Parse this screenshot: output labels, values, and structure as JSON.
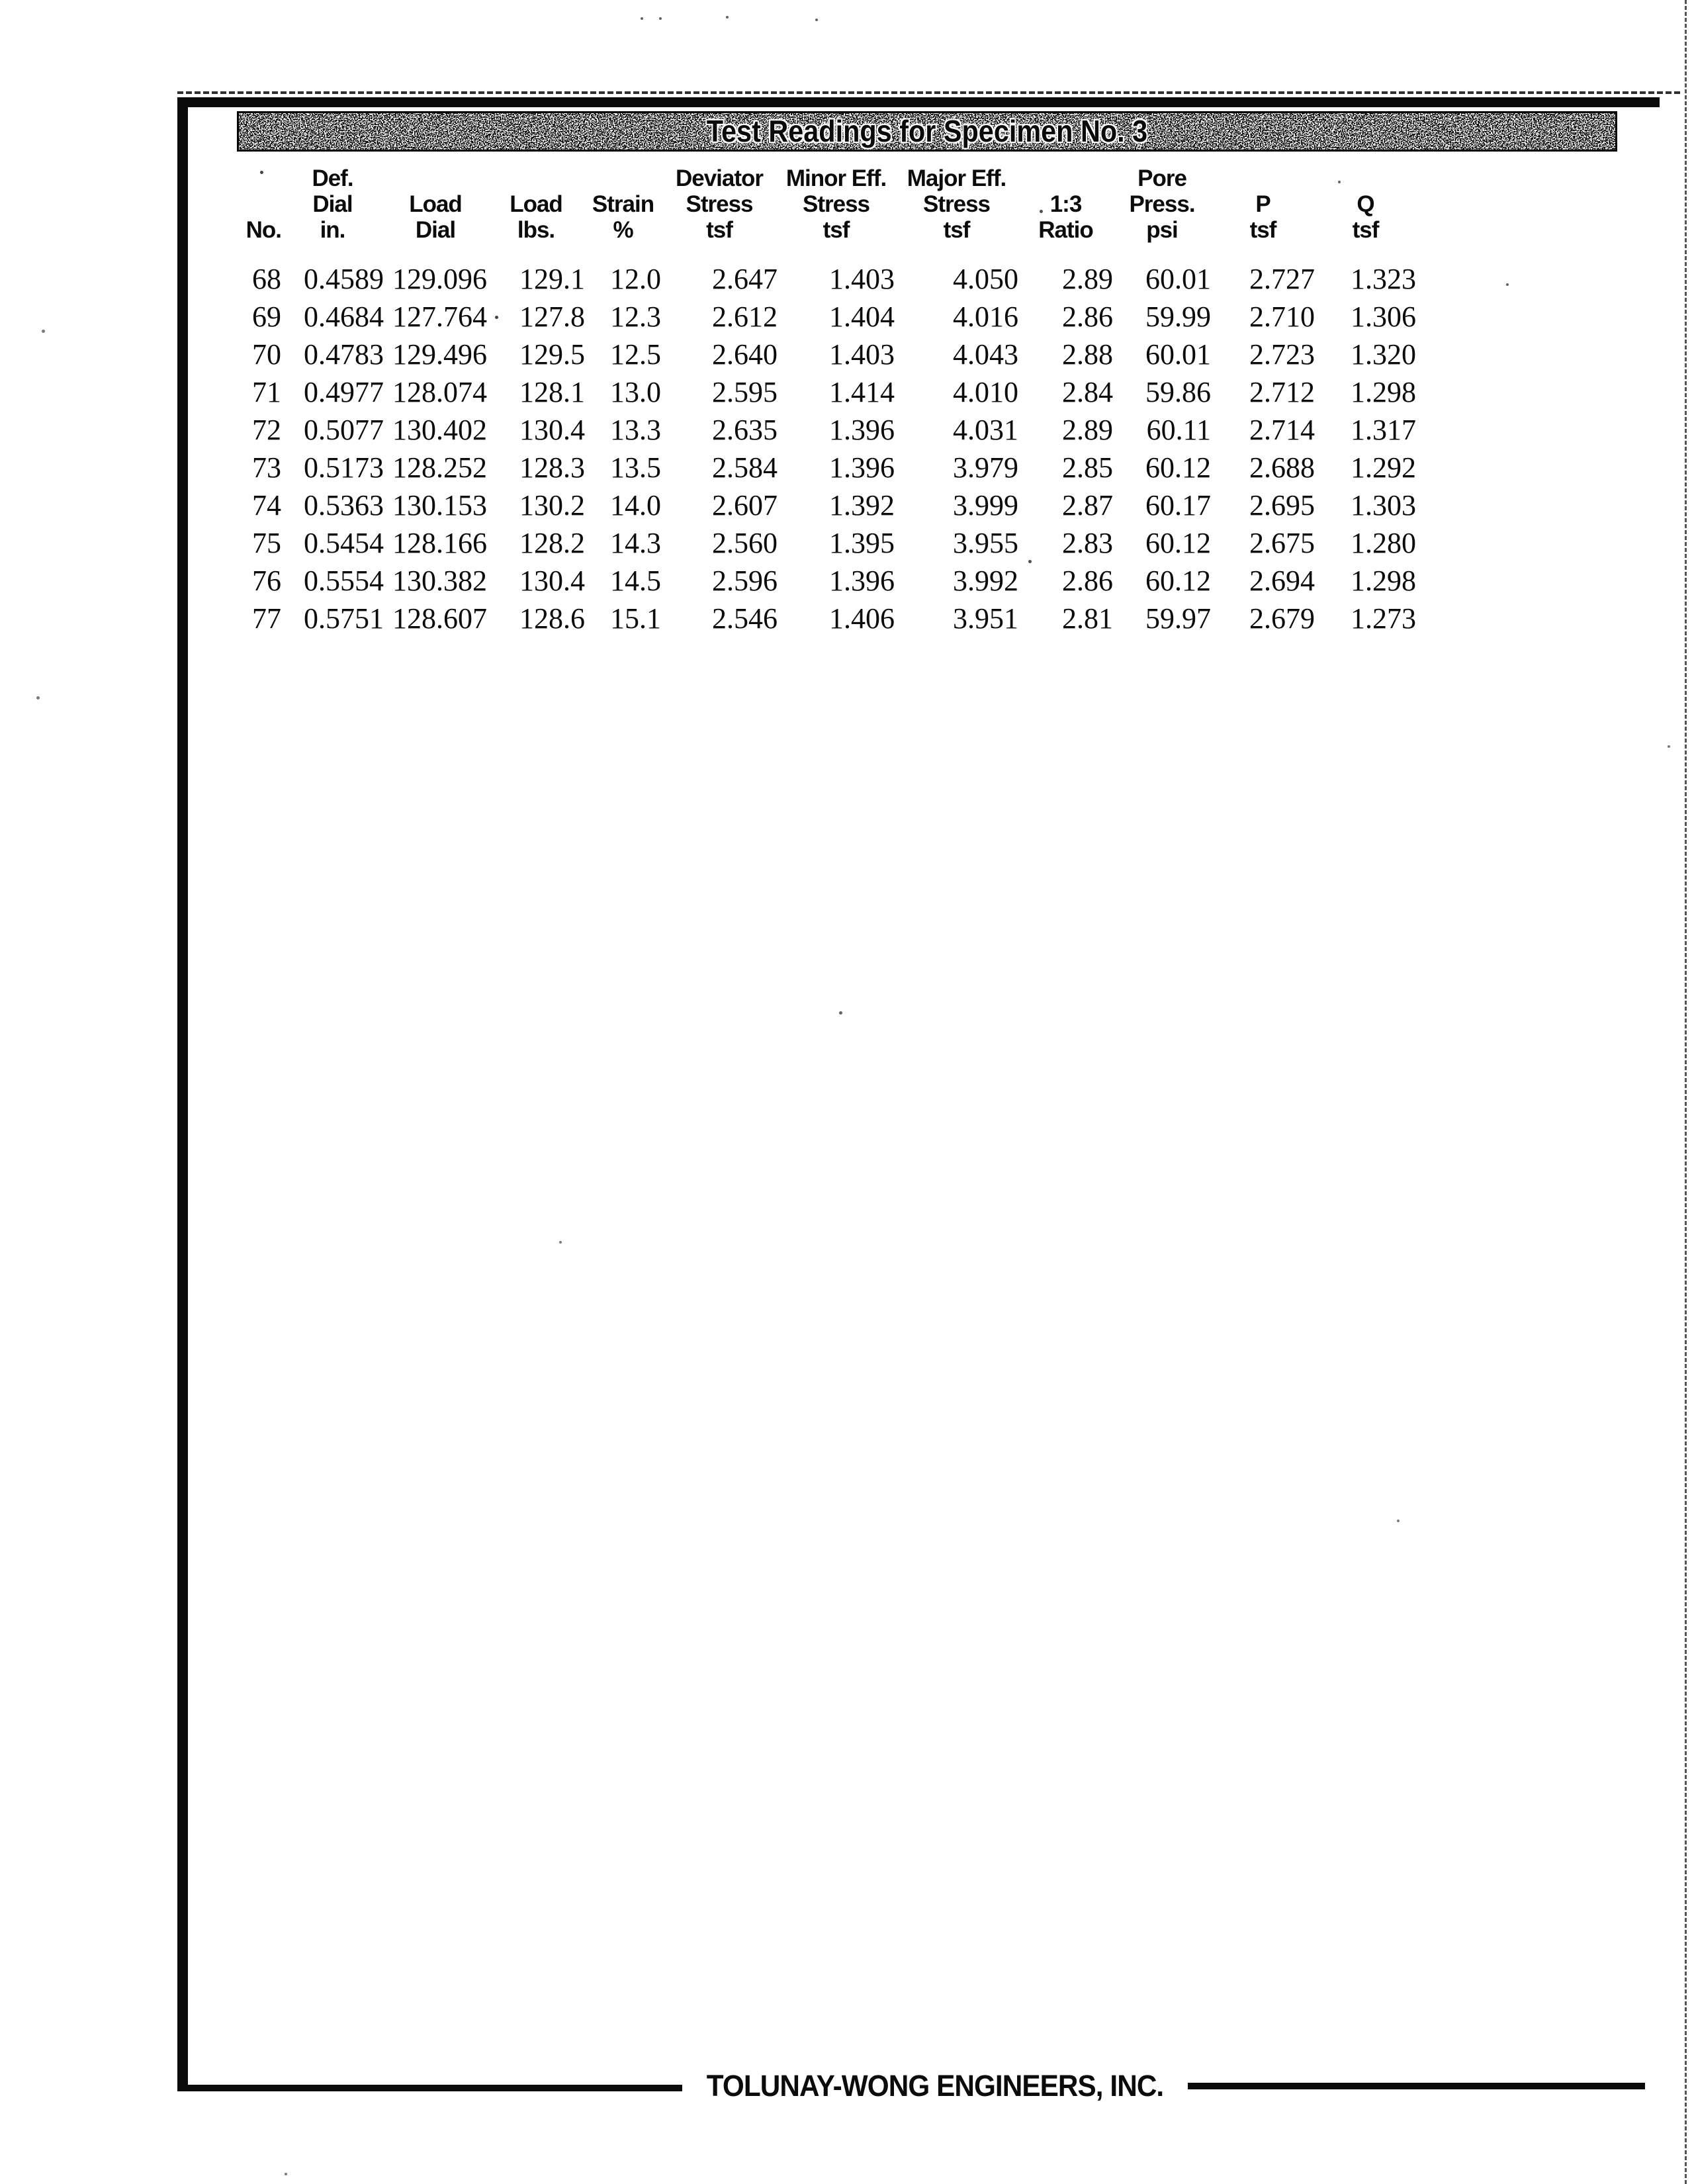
{
  "title_bar": {
    "text": "Test Readings for Specimen No. 3"
  },
  "table": {
    "columns": [
      "No.",
      "Def. Dial in.",
      "Load Dial",
      "Load lbs.",
      "Strain %",
      "Deviator Stress tsf",
      "Minor Eff. Stress tsf",
      "Major Eff. Stress tsf",
      "1:3 Ratio",
      "Pore Press. psi",
      "P tsf",
      "Q tsf"
    ],
    "header_rows": [
      [
        "",
        "Def.",
        "",
        "",
        "",
        "Deviator",
        "Minor Eff.",
        "Major Eff.",
        "",
        "Pore",
        "",
        ""
      ],
      [
        "",
        "Dial",
        "Load",
        "Load",
        "Strain",
        "Stress",
        "Stress",
        "Stress",
        "1:3",
        "Press.",
        "P",
        "Q"
      ],
      [
        "No.",
        "in.",
        "Dial",
        "lbs.",
        "%",
        "tsf",
        "tsf",
        "tsf",
        "Ratio",
        "psi",
        "tsf",
        "tsf"
      ]
    ],
    "rows": [
      [
        "68",
        "0.4589",
        "129.096",
        "129.1",
        "12.0",
        "2.647",
        "1.403",
        "4.050",
        "2.89",
        "60.01",
        "2.727",
        "1.323"
      ],
      [
        "69",
        "0.4684",
        "127.764",
        "127.8",
        "12.3",
        "2.612",
        "1.404",
        "4.016",
        "2.86",
        "59.99",
        "2.710",
        "1.306"
      ],
      [
        "70",
        "0.4783",
        "129.496",
        "129.5",
        "12.5",
        "2.640",
        "1.403",
        "4.043",
        "2.88",
        "60.01",
        "2.723",
        "1.320"
      ],
      [
        "71",
        "0.4977",
        "128.074",
        "128.1",
        "13.0",
        "2.595",
        "1.414",
        "4.010",
        "2.84",
        "59.86",
        "2.712",
        "1.298"
      ],
      [
        "72",
        "0.5077",
        "130.402",
        "130.4",
        "13.3",
        "2.635",
        "1.396",
        "4.031",
        "2.89",
        "60.11",
        "2.714",
        "1.317"
      ],
      [
        "73",
        "0.5173",
        "128.252",
        "128.3",
        "13.5",
        "2.584",
        "1.396",
        "3.979",
        "2.85",
        "60.12",
        "2.688",
        "1.292"
      ],
      [
        "74",
        "0.5363",
        "130.153",
        "130.2",
        "14.0",
        "2.607",
        "1.392",
        "3.999",
        "2.87",
        "60.17",
        "2.695",
        "1.303"
      ],
      [
        "75",
        "0.5454",
        "128.166",
        "128.2",
        "14.3",
        "2.560",
        "1.395",
        "3.955",
        "2.83",
        "60.12",
        "2.675",
        "1.280"
      ],
      [
        "76",
        "0.5554",
        "130.382",
        "130.4",
        "14.5",
        "2.596",
        "1.396",
        "3.992",
        "2.86",
        "60.12",
        "2.694",
        "1.298"
      ],
      [
        "77",
        "0.5751",
        "128.607",
        "128.6",
        "15.1",
        "2.546",
        "1.406",
        "3.951",
        "2.81",
        "59.97",
        "2.679",
        "1.273"
      ]
    ]
  },
  "footer": {
    "company": "TOLUNAY-WONG ENGINEERS, INC."
  },
  "colors": {
    "ink": "#0a0a0a",
    "paper": "#ffffff",
    "titlebar_speckle": "#a8a8a8"
  }
}
